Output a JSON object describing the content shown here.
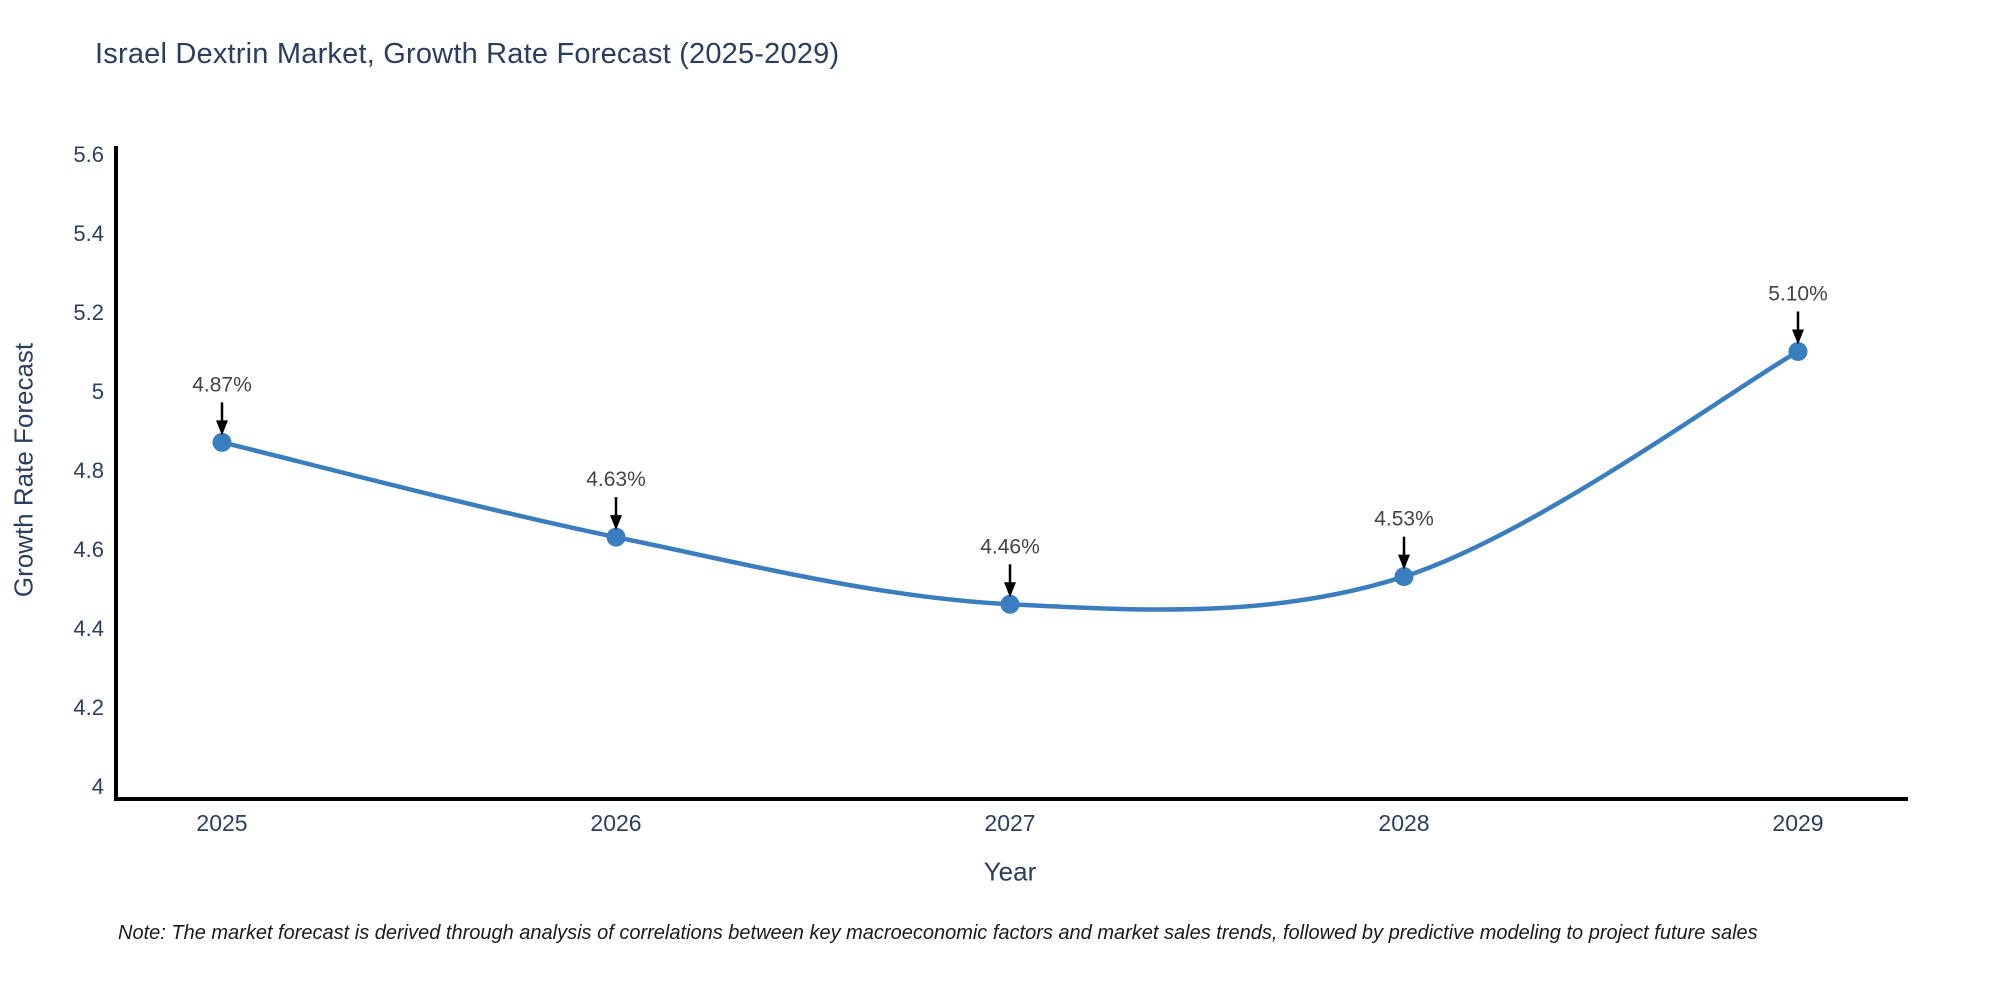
{
  "title": "Israel Dextrin Market, Growth Rate Forecast (2025-2029)",
  "note": "Note: The market forecast is derived through analysis of correlations between key macroeconomic factors and market sales trends, followed by predictive modeling to project future sales",
  "chart_data": {
    "type": "line",
    "title": "Israel Dextrin Market, Growth Rate Forecast (2025-2029)",
    "xlabel": "Year",
    "ylabel": "Growth Rate Forecast",
    "categories": [
      "2025",
      "2026",
      "2027",
      "2028",
      "2029"
    ],
    "series": [
      {
        "name": "Growth Rate Forecast",
        "values": [
          4.87,
          4.63,
          4.46,
          4.53,
          5.1
        ],
        "point_labels": [
          "4.87%",
          "4.63%",
          "4.46%",
          "4.53%",
          "5.10%"
        ]
      }
    ],
    "ylim": [
      4,
      5.6
    ],
    "yticks": [
      "4",
      "4.2",
      "4.4",
      "4.6",
      "4.8",
      "5",
      "5.2",
      "5.4",
      "5.6"
    ],
    "grid": false,
    "legend_position": "none",
    "curve": "spline",
    "colors": {
      "line": "#3a7ebf",
      "marker": "#3a7ebf",
      "axis": "#000000",
      "tick_text": "#2a3f5f",
      "annotation_text": "#444444",
      "arrow": "#000000"
    }
  }
}
